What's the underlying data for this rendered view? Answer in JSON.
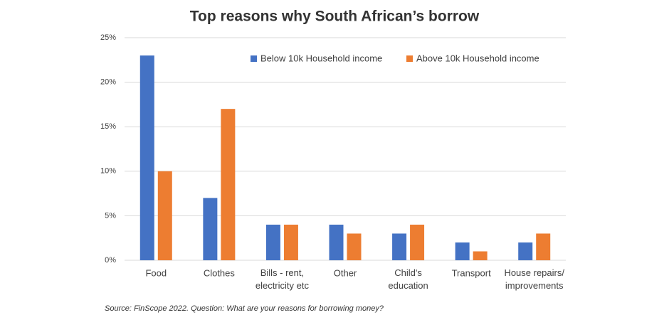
{
  "chart_data": {
    "type": "bar",
    "title": "Top reasons why South African’s borrow",
    "categories": [
      "Food",
      "Clothes",
      "Bills - rent,\nelectricity etc",
      "Other",
      "Child's\neducation",
      "Transport",
      "House repairs/\nimprovements"
    ],
    "series": [
      {
        "name": "Below 10k Household income",
        "color": "#4472c4",
        "values": [
          23,
          7,
          4,
          4,
          3,
          2,
          2
        ]
      },
      {
        "name": "Above 10k Household income",
        "color": "#ed7d31",
        "values": [
          10,
          17,
          4,
          3,
          4,
          1,
          3
        ]
      }
    ],
    "ylim": [
      0,
      25
    ],
    "yticks": [
      {
        "value": 0,
        "label": "0%"
      },
      {
        "value": 5,
        "label": "5%"
      },
      {
        "value": 10,
        "label": "10%"
      },
      {
        "value": 15,
        "label": "15%"
      },
      {
        "value": 20,
        "label": "20%"
      },
      {
        "value": 25,
        "label": "25%"
      }
    ],
    "grid": true,
    "legend": "top",
    "source": "Source: FinScope 2022. Question: What are your reasons for borrowing money?"
  }
}
